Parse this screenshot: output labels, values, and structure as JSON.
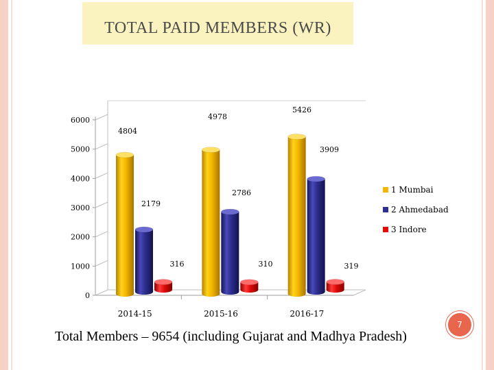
{
  "title": "TOTAL PAID MEMBERS (WR)",
  "footer": "Total Members – 9654 (including Gujarat and Madhya Pradesh)",
  "page_number": "7",
  "colors": {
    "Mumbai": "#f2b705",
    "Ahmedabad": "#2e2e8f",
    "Indore": "#e00b0b"
  },
  "chart_data": {
    "type": "bar",
    "categories": [
      "2014-15",
      "2015-16",
      "2016-17"
    ],
    "series": [
      {
        "name": "1 Mumbai",
        "values": [
          4804,
          4978,
          5426
        ]
      },
      {
        "name": "2 Ahmedabad",
        "values": [
          2179,
          2786,
          3909
        ]
      },
      {
        "name": "3 Indore",
        "values": [
          316,
          310,
          319
        ]
      }
    ],
    "yticks": [
      "0",
      "1000",
      "2000",
      "3000",
      "4000",
      "5000",
      "6000"
    ],
    "ylim": [
      0,
      6000
    ],
    "legend": "right",
    "grid": false,
    "style": "3d-cylinder"
  }
}
